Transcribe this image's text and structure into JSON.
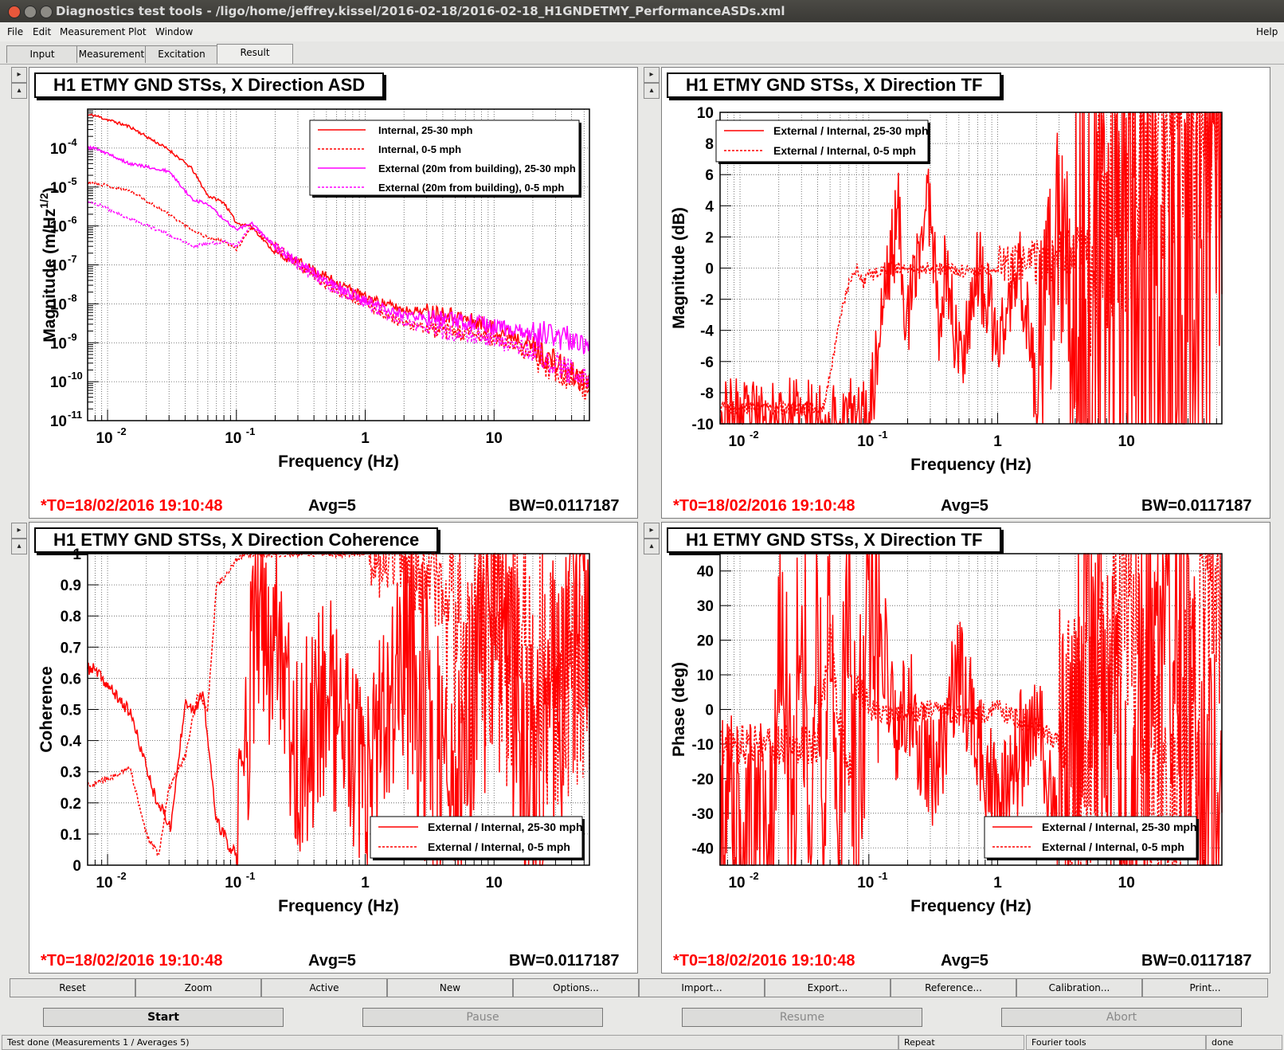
{
  "window": {
    "title": "Diagnostics test tools - /ligo/home/jeffrey.kissel/2016-02-18/2016-02-18_H1GNDETMY_PerformanceASDs.xml"
  },
  "menu": {
    "file": "File",
    "edit": "Edit",
    "measurement": "Measurement",
    "plot": "Plot",
    "window": "Window",
    "help": "Help"
  },
  "tabs": [
    "Input",
    "Measurement",
    "Excitation",
    "Result"
  ],
  "panels": [
    {
      "title": "H1 ETMY GND STSs, X Direction ASD",
      "xlabel": "Frequency (Hz)",
      "t0": "*T0=18/02/2016 19:10:48",
      "avg": "Avg=5",
      "bw": "BW=0.0117187",
      "legend": [
        "Internal, 25-30 mph",
        "Internal, 0-5 mph",
        "External (20m from building), 25-30 mph",
        "External (20m from building), 0-5 mph"
      ]
    },
    {
      "title": "H1 ETMY GND STSs, X Direction TF",
      "ylabel": "Magnitude (dB)",
      "xlabel": "Frequency (Hz)",
      "t0": "*T0=18/02/2016 19:10:48",
      "avg": "Avg=5",
      "bw": "BW=0.0117187",
      "legend": [
        "External / Internal, 25-30 mph",
        "External / Internal, 0-5 mph"
      ]
    },
    {
      "title": "H1 ETMY GND STSs, X Direction Coherence",
      "ylabel": "Coherence",
      "xlabel": "Frequency (Hz)",
      "t0": "*T0=18/02/2016 19:10:48",
      "avg": "Avg=5",
      "bw": "BW=0.0117187",
      "legend": [
        "External / Internal, 25-30 mph",
        "External / Internal, 0-5 mph"
      ]
    },
    {
      "title": "H1 ETMY GND STSs, X Direction TF",
      "ylabel": "Phase (deg)",
      "xlabel": "Frequency (Hz)",
      "t0": "*T0=18/02/2016 19:10:48",
      "avg": "Avg=5",
      "bw": "BW=0.0117187",
      "legend": [
        "External / Internal, 25-30 mph",
        "External / Internal, 0-5 mph"
      ]
    }
  ],
  "chart_data": [
    {
      "type": "line",
      "title": "H1 ETMY GND STSs, X Direction ASD",
      "xlabel": "Frequency (Hz)",
      "ylabel": "Magnitude (m/Hz^1/2)",
      "xscale": "log",
      "yscale": "log",
      "xlim": [
        0.007,
        55
      ],
      "ylim": [
        1e-11,
        0.001
      ],
      "grid": true,
      "legend_position": "top-right",
      "xticks": [
        "10-2",
        "10-1",
        "1",
        "10"
      ],
      "yticks": [
        "10-11",
        "10-10",
        "10-9",
        "10-8",
        "10-7",
        "10-6",
        "10-5",
        "10-4"
      ],
      "series": [
        {
          "name": "Internal, 25-30 mph",
          "color": "#ff0000",
          "style": "solid",
          "x": [
            0.0078,
            0.015,
            0.03,
            0.045,
            0.06,
            0.08,
            0.1,
            0.13,
            0.2,
            0.3,
            0.5,
            1,
            2,
            4,
            8,
            15,
            30,
            50
          ],
          "y": [
            0.0007,
            0.00035,
            9e-05,
            3e-05,
            6e-06,
            4e-06,
            1.2e-06,
            1e-06,
            2e-07,
            1.2e-07,
            5e-08,
            1.5e-08,
            7e-09,
            6e-09,
            3e-09,
            1.5e-09,
            3e-10,
            1e-10
          ]
        },
        {
          "name": "Internal, 0-5 mph",
          "color": "#ff0000",
          "style": "dotted",
          "x": [
            0.0078,
            0.015,
            0.03,
            0.045,
            0.06,
            0.08,
            0.1,
            0.13,
            0.2,
            0.3,
            0.5,
            1,
            2,
            4,
            8,
            15,
            30,
            50
          ],
          "y": [
            1.3e-05,
            8e-06,
            2e-06,
            8e-07,
            5e-07,
            4e-07,
            2.5e-07,
            9e-07,
            3e-07,
            1e-07,
            3e-08,
            1e-08,
            3e-09,
            2e-09,
            1.5e-09,
            8e-10,
            2e-10,
            8e-11
          ]
        },
        {
          "name": "External (20m from building), 25-30 mph",
          "color": "#ff00ff",
          "style": "solid",
          "x": [
            0.0078,
            0.015,
            0.03,
            0.045,
            0.06,
            0.08,
            0.1,
            0.13,
            0.2,
            0.3,
            0.5,
            1,
            2,
            4,
            8,
            15,
            30,
            50
          ],
          "y": [
            0.0001,
            4e-05,
            2.5e-05,
            5e-06,
            3.5e-06,
            1.5e-06,
            8e-07,
            1.2e-06,
            3e-07,
            1.2e-07,
            4e-08,
            1.2e-08,
            5e-09,
            4e-09,
            3e-09,
            2e-09,
            1.5e-09,
            1e-09
          ]
        },
        {
          "name": "External (20m from building), 0-5 mph",
          "color": "#ff00ff",
          "style": "dotted",
          "x": [
            0.0078,
            0.015,
            0.03,
            0.045,
            0.06,
            0.08,
            0.1,
            0.13,
            0.2,
            0.3,
            0.5,
            1,
            2,
            4,
            8,
            15,
            30,
            50
          ],
          "y": [
            4e-06,
            1.5e-06,
            6e-07,
            3e-07,
            3.5e-07,
            4e-07,
            3e-07,
            1e-06,
            3e-07,
            1e-07,
            3e-08,
            1e-08,
            3e-09,
            2e-09,
            1.5e-09,
            8e-10,
            3e-10,
            1e-10
          ]
        }
      ]
    },
    {
      "type": "line",
      "title": "H1 ETMY GND STSs, X Direction TF",
      "xlabel": "Frequency (Hz)",
      "ylabel": "Magnitude (dB)",
      "xscale": "log",
      "xlim": [
        0.007,
        55
      ],
      "ylim": [
        -10,
        10
      ],
      "grid": true,
      "legend_position": "top-left",
      "xticks": [
        "10-2",
        "10-1",
        "1",
        "10"
      ],
      "yticks": [
        "-10",
        "-8",
        "-6",
        "-4",
        "-2",
        "0",
        "2",
        "4",
        "6",
        "8",
        "10"
      ],
      "series": [
        {
          "name": "External / Internal, 25-30 mph",
          "color": "#ff0000",
          "style": "solid",
          "x": [
            0.1,
            0.13,
            0.17,
            0.2,
            0.25,
            0.3,
            0.35,
            0.4,
            0.5,
            0.7,
            1,
            1.5,
            2,
            3,
            5,
            10,
            20,
            50
          ],
          "y": [
            -10,
            -2,
            3.5,
            -4,
            2,
            4.5,
            -3,
            0,
            -6,
            0,
            -5,
            0,
            -8,
            2,
            -10,
            8,
            -10,
            10
          ]
        },
        {
          "name": "External / Internal, 0-5 mph",
          "color": "#ff0000",
          "style": "dotted",
          "x": [
            0.045,
            0.06,
            0.07,
            0.08,
            0.09,
            0.1,
            0.15,
            0.3,
            0.6,
            1,
            2,
            3,
            5,
            10,
            20,
            50
          ],
          "y": [
            -9,
            -3,
            -1,
            0,
            -1,
            -0.5,
            0,
            0,
            -0.2,
            0,
            0.3,
            0.5,
            2,
            5,
            8,
            10
          ]
        }
      ]
    },
    {
      "type": "line",
      "title": "H1 ETMY GND STSs, X Direction Coherence",
      "xlabel": "Frequency (Hz)",
      "ylabel": "Coherence",
      "xscale": "log",
      "xlim": [
        0.007,
        55
      ],
      "ylim": [
        0,
        1
      ],
      "grid": true,
      "legend_position": "bottom-right",
      "xticks": [
        "10-2",
        "10-1",
        "1",
        "10"
      ],
      "yticks": [
        "0",
        "0.1",
        "0.2",
        "0.3",
        "0.4",
        "0.5",
        "0.6",
        "0.7",
        "0.8",
        "0.9",
        "1"
      ],
      "series": [
        {
          "name": "External / Internal, 25-30 mph",
          "color": "#ff0000",
          "style": "solid",
          "x": [
            0.0078,
            0.015,
            0.023,
            0.031,
            0.04,
            0.047,
            0.055,
            0.07,
            0.08,
            0.09,
            0.1,
            0.13,
            0.15,
            0.18,
            0.2,
            0.3,
            0.5,
            1,
            2,
            5,
            10,
            20,
            50
          ],
          "y": [
            0.63,
            0.49,
            0.23,
            0.12,
            0.53,
            0.5,
            0.55,
            0.14,
            0.1,
            0.04,
            0.05,
            0.6,
            0.85,
            0.65,
            0.9,
            0.3,
            0.6,
            0.2,
            0.7,
            0.1,
            0.9,
            0.2,
            0.95
          ]
        },
        {
          "name": "External / Internal, 0-5 mph",
          "color": "#ff0000",
          "style": "dotted",
          "x": [
            0.0078,
            0.015,
            0.02,
            0.025,
            0.03,
            0.04,
            0.05,
            0.06,
            0.07,
            0.08,
            0.1,
            0.12,
            0.2,
            0.5,
            1,
            2,
            3,
            5,
            10,
            50
          ],
          "y": [
            0.26,
            0.31,
            0.1,
            0.03,
            0.25,
            0.35,
            0.55,
            0.5,
            0.9,
            0.92,
            0.98,
            1,
            1,
            1,
            1,
            0.98,
            0.95,
            0.8,
            0.7,
            0.6
          ]
        }
      ]
    },
    {
      "type": "line",
      "title": "H1 ETMY GND STSs, X Direction TF",
      "xlabel": "Frequency (Hz)",
      "ylabel": "Phase (deg)",
      "xscale": "log",
      "xlim": [
        0.007,
        55
      ],
      "ylim": [
        -45,
        45
      ],
      "grid": true,
      "legend_position": "bottom-right",
      "xticks": [
        "10-2",
        "10-1",
        "1",
        "10"
      ],
      "yticks": [
        "-40",
        "-30",
        "-20",
        "-10",
        "0",
        "10",
        "20",
        "30",
        "40"
      ],
      "series": [
        {
          "name": "External / Internal, 25-30 mph",
          "color": "#ff0000",
          "style": "solid",
          "x": [
            0.018,
            0.02,
            0.025,
            0.03,
            0.035,
            0.04,
            0.045,
            0.05,
            0.06,
            0.07,
            0.08,
            0.1,
            0.13,
            0.17,
            0.2,
            0.3,
            0.5,
            1,
            2,
            3,
            5,
            10,
            20,
            50
          ],
          "y": [
            -45,
            45,
            -45,
            45,
            -45,
            45,
            -45,
            45,
            -45,
            45,
            -45,
            45,
            20,
            -10,
            5,
            -20,
            10,
            -30,
            0,
            -40,
            45,
            -45,
            45,
            -45
          ]
        },
        {
          "name": "External / Internal, 0-5 mph",
          "color": "#ff0000",
          "style": "dotted",
          "x": [
            0.04,
            0.05,
            0.06,
            0.07,
            0.08,
            0.1,
            0.15,
            0.3,
            0.6,
            1,
            2,
            3,
            5,
            10,
            20,
            50
          ],
          "y": [
            -10,
            20,
            -5,
            -20,
            5,
            0,
            -2,
            0,
            -2,
            0,
            -5,
            -10,
            -20,
            30,
            -40,
            45
          ]
        }
      ]
    }
  ],
  "toolbar": [
    "Reset",
    "Zoom",
    "Active",
    "New",
    "Options...",
    "Import...",
    "Export...",
    "Reference...",
    "Calibration...",
    "Print..."
  ],
  "controls": {
    "start": "Start",
    "pause": "Pause",
    "resume": "Resume",
    "abort": "Abort"
  },
  "status": {
    "message": "Test done (Measurements 1 / Averages 5)",
    "repeat": "Repeat",
    "fourier": "Fourier tools",
    "state": "done"
  },
  "colors": {
    "trace_red": "#ff0000",
    "trace_magenta": "#ff00ff",
    "t0_text": "#ff0000"
  }
}
